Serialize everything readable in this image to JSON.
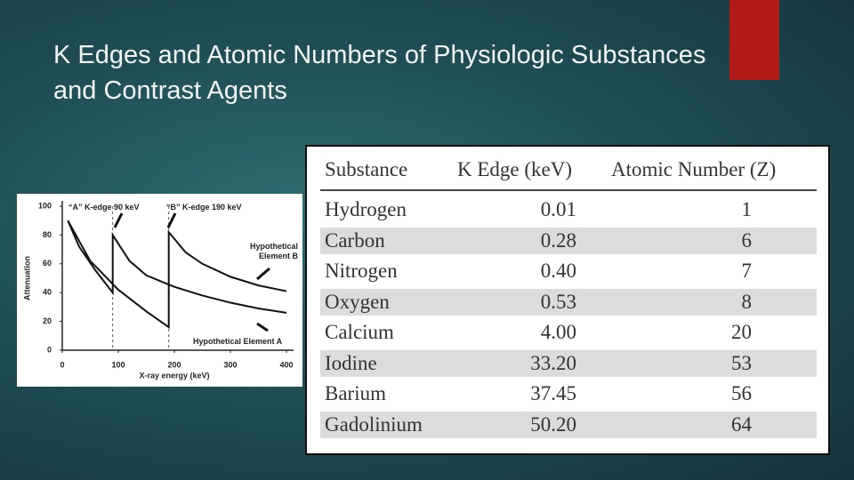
{
  "title": "K Edges and Atomic Numbers of Physiologic Substances and Contrast Agents",
  "chart_data": {
    "type": "line",
    "xlabel": "X-ray energy (keV)",
    "ylabel": "Attenuation",
    "xlim": [
      0,
      400
    ],
    "xticks": [
      0,
      100,
      200,
      300,
      400
    ],
    "ylim": [
      0,
      100
    ],
    "yticks": [
      0,
      20,
      40,
      60,
      80,
      100
    ],
    "reference_lines": [
      90,
      190
    ],
    "annotations": [
      "“A” K-edge 90 keV",
      "“B” K-edge 190 keV"
    ],
    "series": [
      {
        "name": "Hypothetical Element A",
        "color": "#111111",
        "x": [
          10,
          30,
          60,
          90,
          90,
          120,
          150,
          200,
          250,
          300,
          350,
          400
        ],
        "values": [
          90,
          72,
          55,
          40,
          80,
          62,
          52,
          44,
          38,
          33,
          29,
          26
        ]
      },
      {
        "name": "Hypothetical Element B",
        "color": "#111111",
        "x": [
          10,
          50,
          100,
          150,
          190,
          190,
          220,
          250,
          300,
          350,
          400
        ],
        "values": [
          90,
          62,
          42,
          27,
          16,
          82,
          68,
          60,
          51,
          45,
          41
        ]
      }
    ]
  },
  "table": {
    "header": [
      "Substance",
      "K Edge (keV)",
      "Atomic Number (Z)"
    ],
    "rows": [
      [
        "Hydrogen",
        "0.01",
        1
      ],
      [
        "Carbon",
        "0.28",
        6
      ],
      [
        "Nitrogen",
        "0.40",
        7
      ],
      [
        "Oxygen",
        "0.53",
        8
      ],
      [
        "Calcium",
        "4.00",
        20
      ],
      [
        "Iodine",
        "33.20",
        53
      ],
      [
        "Barium",
        "37.45",
        56
      ],
      [
        "Gadolinium",
        "50.20",
        64
      ]
    ]
  }
}
